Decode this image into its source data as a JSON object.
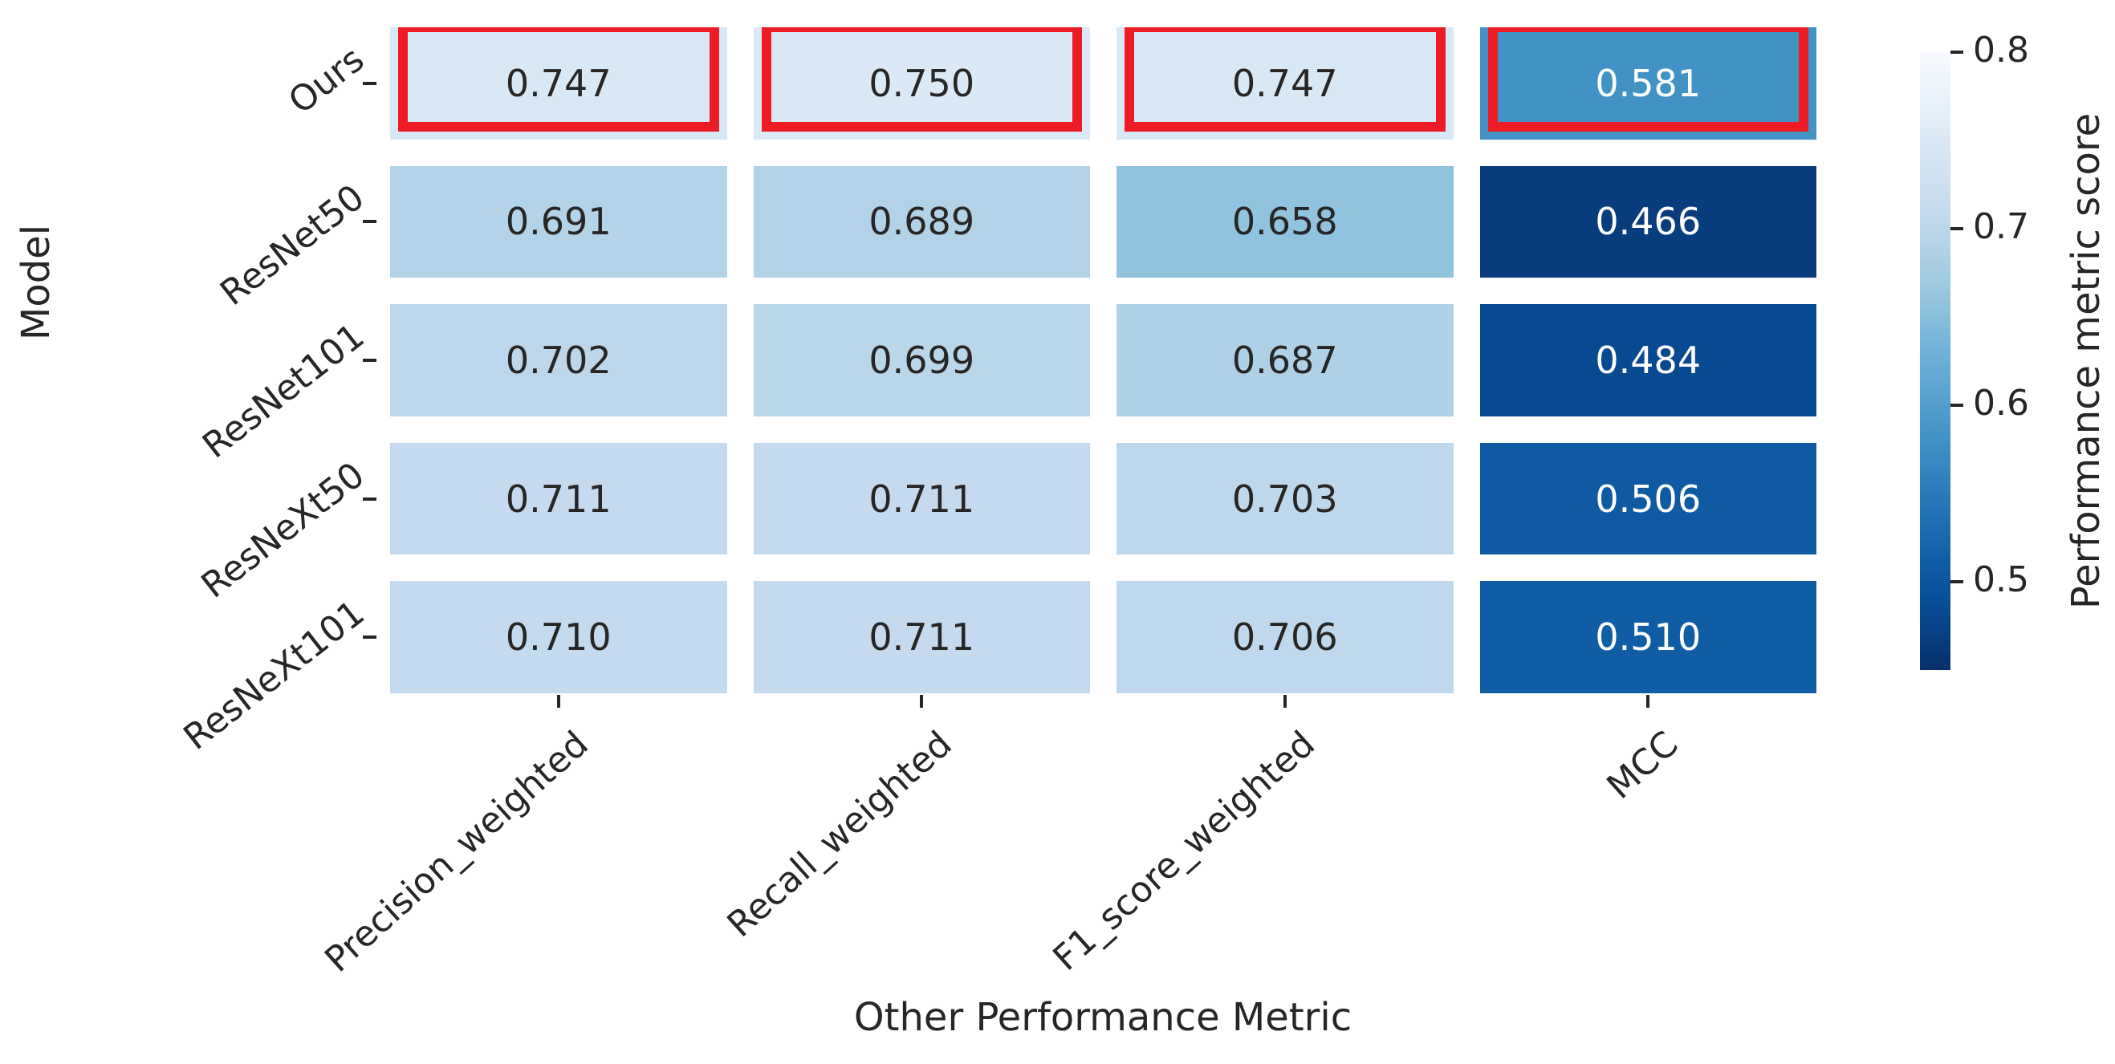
{
  "figure": {
    "background": "#ffffff",
    "text_color": "#262626"
  },
  "chart_data": {
    "type": "heatmap",
    "title": "",
    "xlabel": "Other Performance Metric",
    "ylabel": "Model",
    "x_categories": [
      "Precision_weighted",
      "Recall_weighted",
      "F1_score_weighted",
      "MCC"
    ],
    "y_categories": [
      "Ours",
      "ResNet50",
      "ResNet101",
      "ResNeXt50",
      "ResNeXt101"
    ],
    "values": [
      [
        0.747,
        0.75,
        0.747,
        0.581
      ],
      [
        0.691,
        0.689,
        0.658,
        0.466
      ],
      [
        0.702,
        0.699,
        0.687,
        0.484
      ],
      [
        0.711,
        0.711,
        0.703,
        0.506
      ],
      [
        0.71,
        0.711,
        0.706,
        0.51
      ]
    ],
    "annotations": [
      [
        "0.747",
        "0.750",
        "0.747",
        "0.581"
      ],
      [
        "0.691",
        "0.689",
        "0.658",
        "0.466"
      ],
      [
        "0.702",
        "0.699",
        "0.687",
        "0.484"
      ],
      [
        "0.711",
        "0.711",
        "0.703",
        "0.506"
      ],
      [
        "0.710",
        "0.711",
        "0.706",
        "0.510"
      ]
    ],
    "colorbar": {
      "label": "Performance metric score",
      "ticks": [
        "0.8",
        "0.7",
        "0.6",
        "0.5"
      ],
      "tick_values": [
        0.8,
        0.7,
        0.6,
        0.5
      ],
      "vmin": 0.45,
      "vmax": 0.8
    },
    "colormap": {
      "name": "Blues (light = high score)",
      "anchors_light_to_dark": [
        "#f7fbff",
        "#deebf7",
        "#c6dbef",
        "#9ecae1",
        "#6baed6",
        "#4292c6",
        "#2171b5",
        "#08519c",
        "#08306b"
      ]
    },
    "highlight": {
      "row": "Ours",
      "color": "#ed1c24"
    },
    "annotation_dark_text": "#262626",
    "annotation_light_text": "#ffffff",
    "grid_gap_color": "#ffffff",
    "legend_position": "right-colorbar"
  }
}
